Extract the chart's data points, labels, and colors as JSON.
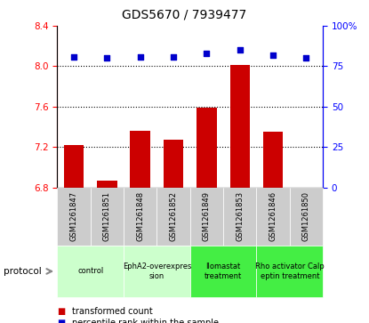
{
  "title": "GDS5670 / 7939477",
  "samples": [
    "GSM1261847",
    "GSM1261851",
    "GSM1261848",
    "GSM1261852",
    "GSM1261849",
    "GSM1261853",
    "GSM1261846",
    "GSM1261850"
  ],
  "red_values": [
    7.22,
    6.87,
    7.36,
    7.27,
    7.59,
    8.01,
    7.35,
    6.8
  ],
  "blue_values": [
    81,
    80,
    81,
    81,
    83,
    85,
    82,
    80
  ],
  "ylim_left": [
    6.8,
    8.4
  ],
  "ylim_right": [
    0,
    100
  ],
  "yticks_left": [
    6.8,
    7.2,
    7.6,
    8.0,
    8.4
  ],
  "yticks_right": [
    0,
    25,
    50,
    75,
    100
  ],
  "ytick_labels_right": [
    "0",
    "25",
    "50",
    "75",
    "100%"
  ],
  "hlines": [
    7.2,
    7.6,
    8.0
  ],
  "protocols": [
    {
      "label": "control",
      "start": 0,
      "end": 2,
      "color": "#ccffcc"
    },
    {
      "label": "EphA2-overexpres\nsion",
      "start": 2,
      "end": 4,
      "color": "#ccffcc"
    },
    {
      "label": "Ilomastat\ntreatment",
      "start": 4,
      "end": 6,
      "color": "#44ee44"
    },
    {
      "label": "Rho activator Calp\neptin treatment",
      "start": 6,
      "end": 8,
      "color": "#44ee44"
    }
  ],
  "bar_color": "#cc0000",
  "dot_color": "#0000cc",
  "bar_width": 0.6,
  "legend_labels": [
    "transformed count",
    "percentile rank within the sample"
  ],
  "legend_colors": [
    "#cc0000",
    "#0000cc"
  ],
  "sample_box_color": "#cccccc",
  "title_fontsize": 10,
  "axis_fontsize": 7.5,
  "label_fontsize": 6
}
